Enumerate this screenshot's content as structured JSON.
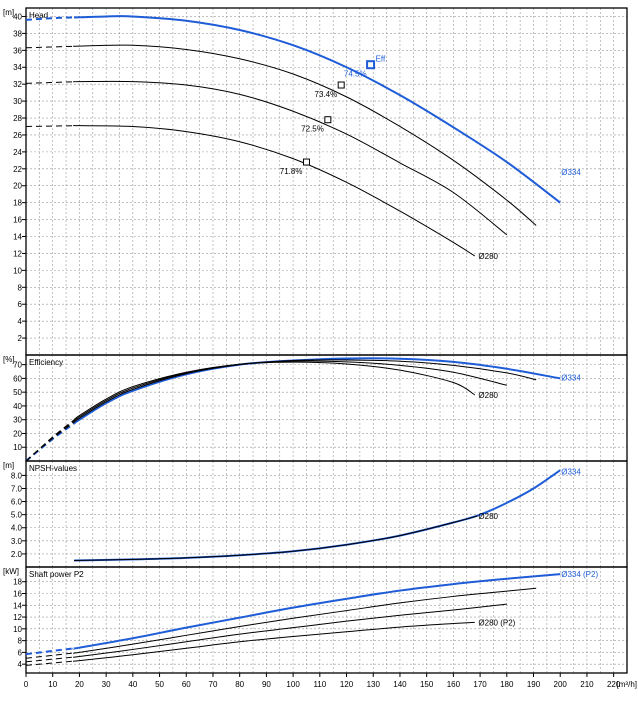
{
  "colors": {
    "highlight": "#1e5cd8",
    "curve": "#000000",
    "grid": "#9a9a9a",
    "frame": "#000000"
  },
  "x_axis": {
    "unit": "[m³/h]",
    "min": 0,
    "max": 225,
    "ticks": [
      0,
      10,
      20,
      30,
      40,
      50,
      60,
      70,
      80,
      90,
      100,
      110,
      120,
      130,
      140,
      150,
      160,
      170,
      180,
      190,
      200,
      210,
      220
    ]
  },
  "chart_data": [
    {
      "type": "line",
      "title": "Head",
      "unit": "[m]",
      "xlim": [
        0,
        225
      ],
      "ylim": [
        0,
        41
      ],
      "yticks": [
        2,
        4,
        6,
        8,
        10,
        12,
        14,
        16,
        18,
        20,
        22,
        24,
        26,
        28,
        30,
        32,
        34,
        36,
        38,
        40
      ],
      "dashed_to_x": 18,
      "series": [
        {
          "name": "Ø334",
          "highlight": true,
          "label_at": [
            200,
            21.6
          ],
          "x": [
            0,
            10,
            20,
            30,
            40,
            60,
            80,
            100,
            120,
            140,
            160,
            180,
            200
          ],
          "y": [
            39.6,
            39.8,
            39.9,
            40.0,
            40.0,
            39.5,
            38.4,
            36.6,
            34.0,
            30.7,
            26.9,
            22.8,
            18.0
          ]
        },
        {
          "x": [
            0,
            20,
            40,
            60,
            80,
            100,
            120,
            140,
            160,
            180,
            191
          ],
          "y": [
            36.3,
            36.5,
            36.6,
            36.1,
            35.0,
            33.2,
            30.5,
            27.0,
            23.0,
            18.3,
            15.3
          ]
        },
        {
          "x": [
            0,
            20,
            40,
            60,
            80,
            100,
            120,
            140,
            160,
            180
          ],
          "y": [
            32.1,
            32.3,
            32.3,
            31.9,
            30.8,
            28.8,
            26.1,
            22.7,
            19.2,
            14.2
          ]
        },
        {
          "x": [
            0,
            20,
            40,
            60,
            80,
            100,
            120,
            140,
            160,
            168
          ],
          "y": [
            27.0,
            27.1,
            27.0,
            26.4,
            25.2,
            23.2,
            20.4,
            17.0,
            13.3,
            11.7
          ]
        }
      ],
      "labels": [
        {
          "text": "Ø280",
          "x": 169,
          "y": 11.7
        }
      ],
      "efficiency_points": [
        {
          "x": 129,
          "y": 34.3,
          "label": "74.5%",
          "highlight": true,
          "eff_tag": "Eff."
        },
        {
          "x": 118,
          "y": 31.9,
          "label": "73.4%"
        },
        {
          "x": 113,
          "y": 27.8,
          "label": "72.5%"
        },
        {
          "x": 105,
          "y": 22.8,
          "label": "71.8%"
        }
      ]
    },
    {
      "type": "line",
      "title": "Efficiency",
      "unit": "[%]",
      "xlim": [
        0,
        225
      ],
      "ylim": [
        0,
        77
      ],
      "yticks": [
        10,
        20,
        30,
        40,
        50,
        60,
        70
      ],
      "dashed_to_x": 18,
      "series": [
        {
          "name": "Ø334",
          "highlight": true,
          "label_at": [
            200,
            60.8
          ],
          "x": [
            0,
            10,
            20,
            30,
            40,
            60,
            80,
            100,
            120,
            140,
            160,
            180,
            200
          ],
          "y": [
            0,
            16,
            30,
            42,
            51,
            63,
            70,
            73,
            74.5,
            74.3,
            72,
            67,
            60
          ]
        },
        {
          "x": [
            0,
            10,
            20,
            30,
            40,
            60,
            80,
            100,
            120,
            140,
            160,
            180,
            191
          ],
          "y": [
            0,
            16.5,
            31,
            43,
            52,
            63.5,
            70,
            73,
            73.4,
            72.5,
            69.5,
            64,
            59
          ]
        },
        {
          "x": [
            0,
            10,
            20,
            30,
            40,
            60,
            80,
            100,
            120,
            140,
            160,
            180
          ],
          "y": [
            0,
            17,
            32,
            44,
            53,
            64,
            70.3,
            72.5,
            72,
            69.5,
            64.5,
            55
          ]
        },
        {
          "x": [
            0,
            10,
            20,
            30,
            40,
            60,
            80,
            100,
            120,
            140,
            160,
            168
          ],
          "y": [
            0,
            17.5,
            33,
            45,
            54,
            64.5,
            70.3,
            71.8,
            70.5,
            66,
            57,
            48
          ]
        }
      ],
      "labels": [
        {
          "text": "Ø280",
          "x": 169,
          "y": 48
        }
      ]
    },
    {
      "type": "line",
      "title": "NPSH-values",
      "unit": "[m]",
      "xlim": [
        0,
        225
      ],
      "ylim": [
        1.0,
        9.1
      ],
      "yticks": [
        2.0,
        3.0,
        4.0,
        5.0,
        6.0,
        7.0,
        8.0
      ],
      "series": [
        {
          "name": "Ø334",
          "highlight": true,
          "label_at": [
            200,
            8.3
          ],
          "x": [
            18,
            40,
            60,
            80,
            100,
            120,
            140,
            160,
            170,
            180,
            190,
            200
          ],
          "y": [
            1.5,
            1.58,
            1.7,
            1.9,
            2.2,
            2.7,
            3.4,
            4.4,
            5.0,
            5.9,
            7.0,
            8.4
          ]
        },
        {
          "x": [
            18,
            40,
            60,
            80,
            100,
            120,
            140,
            160,
            169
          ],
          "y": [
            1.5,
            1.58,
            1.7,
            1.9,
            2.2,
            2.7,
            3.4,
            4.4,
            4.9
          ]
        }
      ],
      "labels": [
        {
          "text": "Ø280",
          "x": 169,
          "y": 4.9
        }
      ]
    },
    {
      "type": "line",
      "title": "Shaft power P2",
      "unit": "[kW]",
      "xlim": [
        0,
        225
      ],
      "ylim": [
        2.5,
        20.5
      ],
      "yticks": [
        4,
        6,
        8,
        10,
        12,
        14,
        16,
        18
      ],
      "dashed_to_x": 18,
      "series": [
        {
          "name": "Ø334 (P2)",
          "highlight": true,
          "label_at": [
            200,
            19.3
          ],
          "x": [
            0,
            20,
            40,
            60,
            80,
            100,
            120,
            140,
            160,
            180,
            200
          ],
          "y": [
            5.7,
            6.8,
            8.4,
            10.2,
            11.9,
            13.6,
            15.1,
            16.5,
            17.6,
            18.5,
            19.3
          ]
        },
        {
          "x": [
            0,
            20,
            40,
            60,
            80,
            100,
            120,
            140,
            160,
            180,
            191
          ],
          "y": [
            5.0,
            6.0,
            7.4,
            8.9,
            10.4,
            11.8,
            13.1,
            14.4,
            15.5,
            16.4,
            16.9
          ]
        },
        {
          "x": [
            0,
            20,
            40,
            60,
            80,
            100,
            120,
            140,
            160,
            180
          ],
          "y": [
            4.4,
            5.3,
            6.5,
            7.8,
            9.1,
            10.2,
            11.3,
            12.3,
            13.2,
            14.2
          ]
        },
        {
          "x": [
            0,
            20,
            40,
            60,
            80,
            100,
            120,
            140,
            160,
            168
          ],
          "y": [
            3.8,
            4.6,
            5.6,
            6.7,
            7.8,
            8.7,
            9.5,
            10.3,
            10.9,
            11.1
          ]
        }
      ],
      "labels": [
        {
          "text": "Ø280 (P2)",
          "x": 169,
          "y": 11.1
        }
      ]
    }
  ]
}
